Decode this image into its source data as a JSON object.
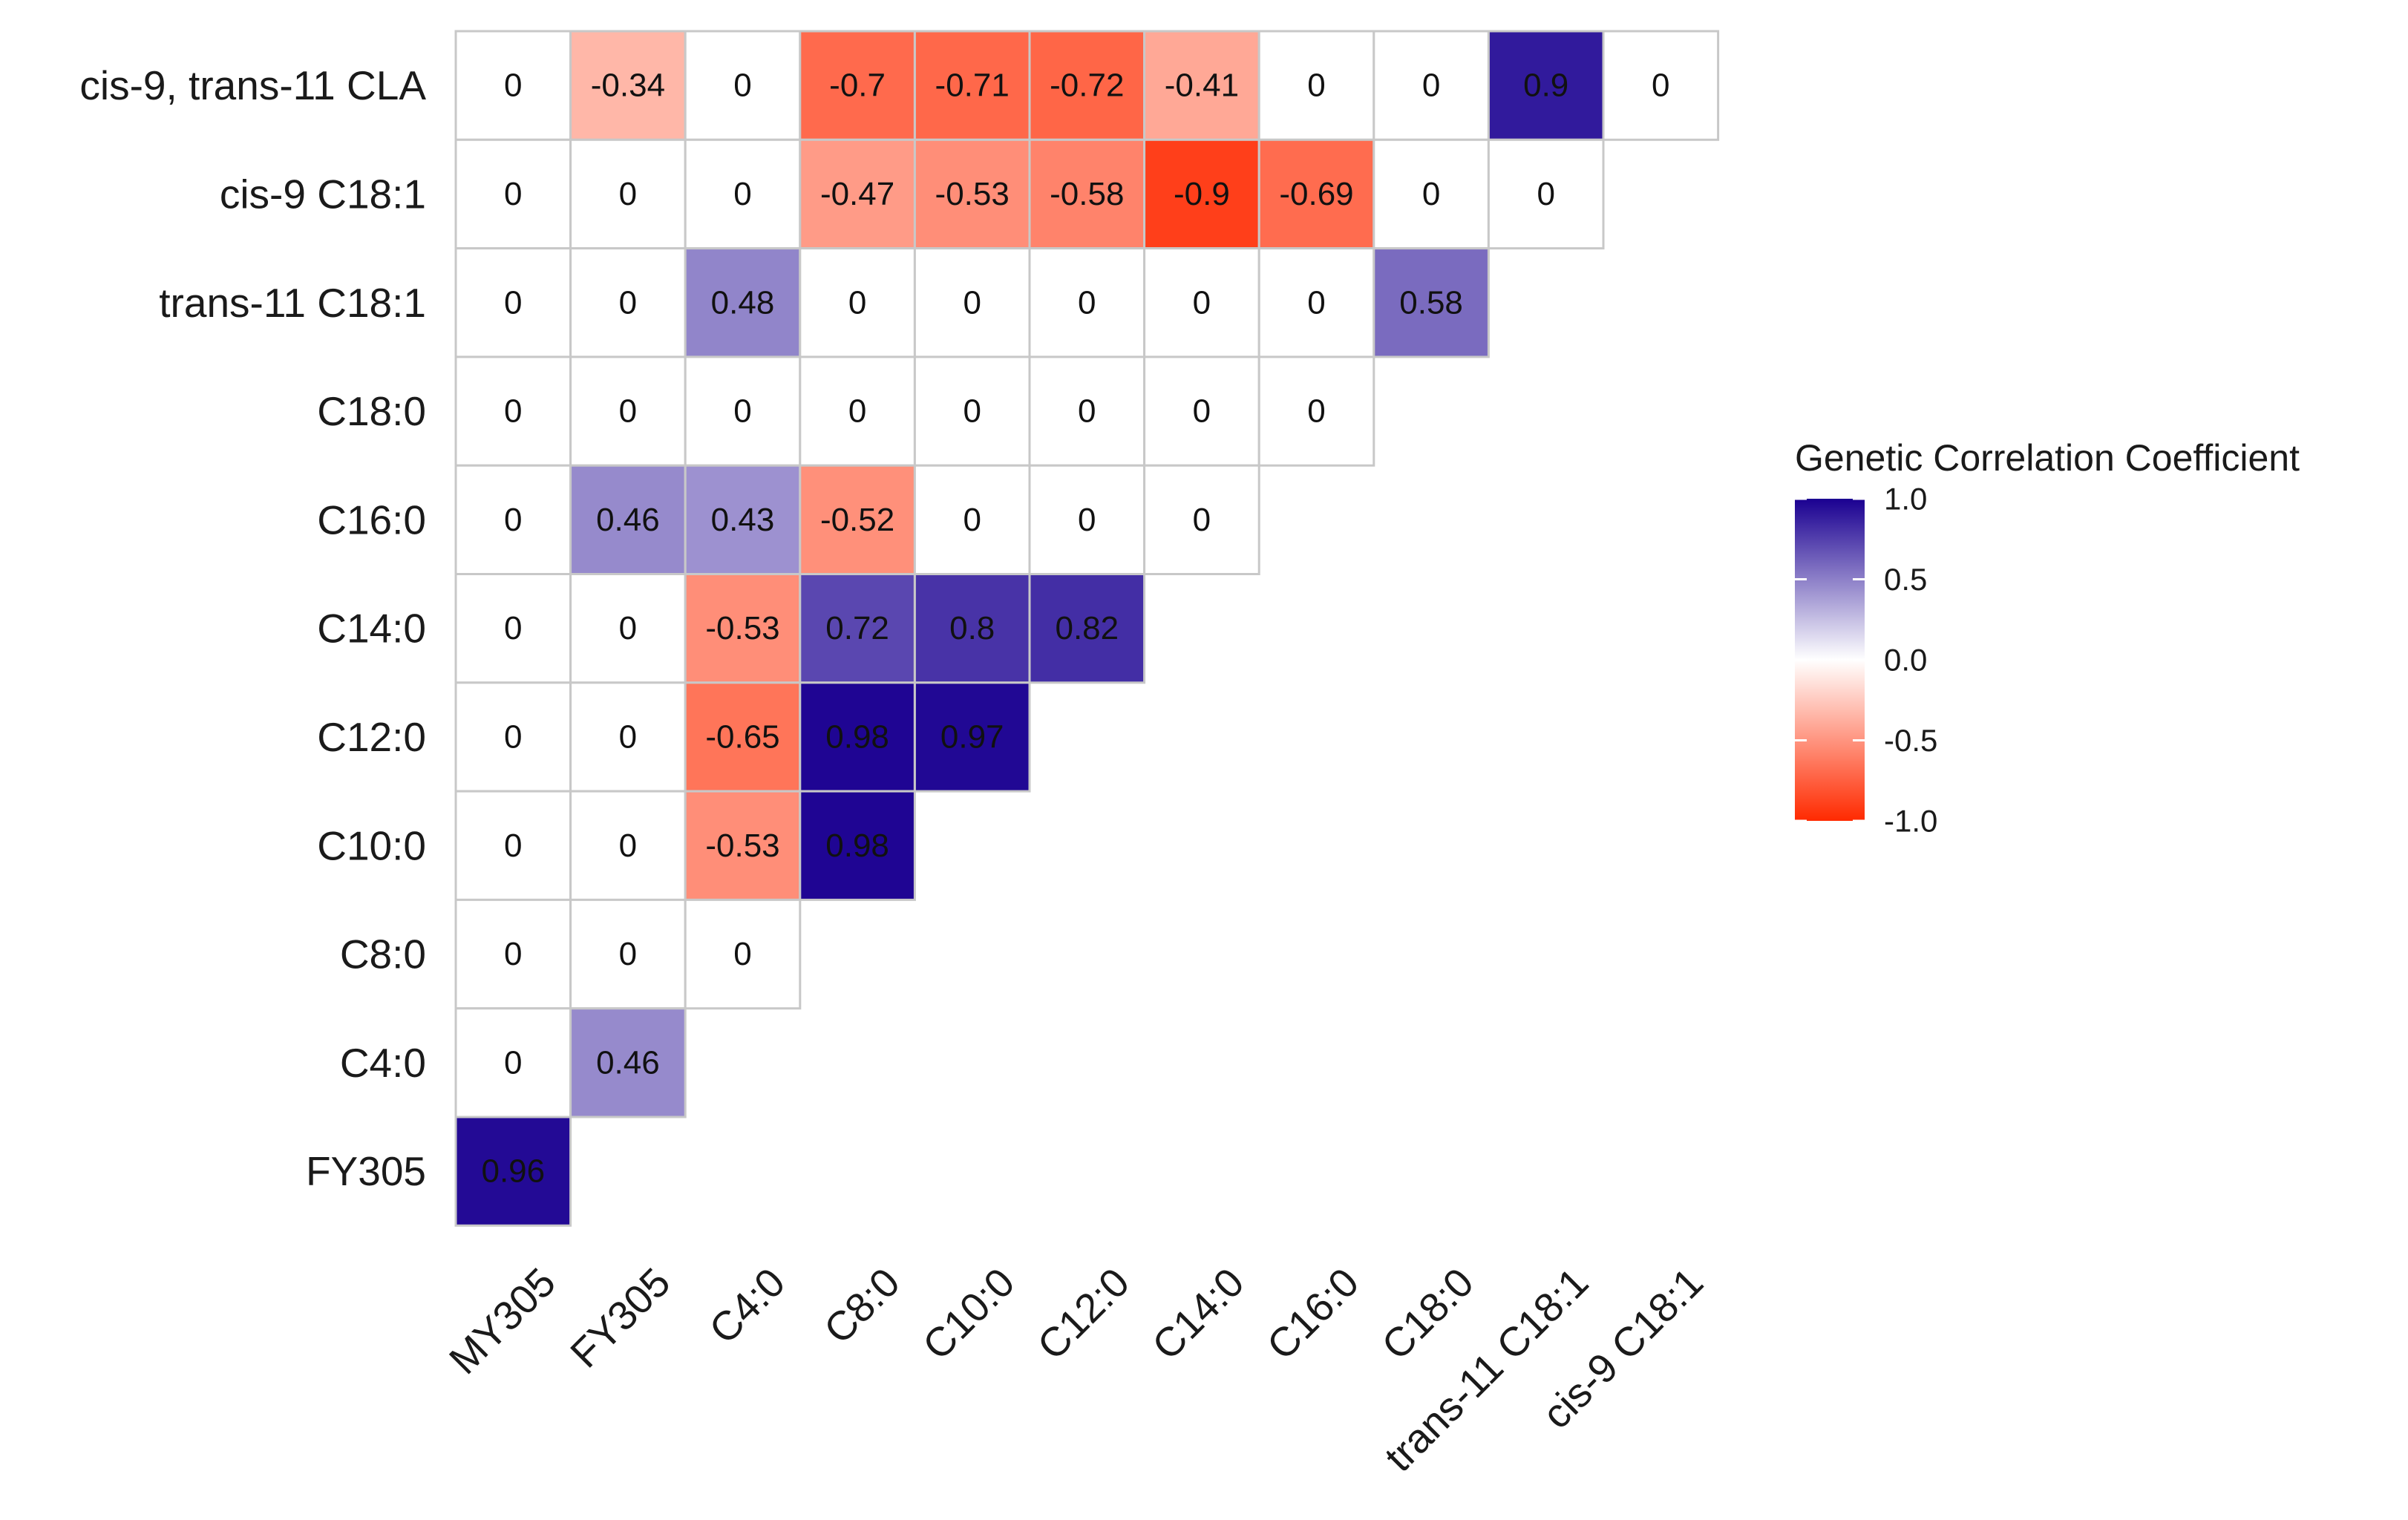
{
  "chart_data": {
    "type": "heatmap",
    "title": "",
    "xlabel": "",
    "ylabel": "",
    "x_categories": [
      "MY305",
      "FY305",
      "C4:0",
      "C8:0",
      "C10:0",
      "C12:0",
      "C14:0",
      "C16:0",
      "C18:0",
      "trans-11 C18:1",
      "cis-9 C18:1"
    ],
    "y_categories": [
      "cis-9, trans-11 CLA",
      "cis-9 C18:1",
      "trans-11 C18:1",
      "C18:0",
      "C16:0",
      "C14:0",
      "C12:0",
      "C10:0",
      "C8:0",
      "C4:0",
      "FY305"
    ],
    "rows": [
      {
        "label": "cis-9, trans-11 CLA",
        "cells": [
          {
            "v": 0,
            "t": "0"
          },
          {
            "v": -0.34,
            "t": "-0.34"
          },
          {
            "v": 0,
            "t": "0"
          },
          {
            "v": -0.7,
            "t": "-0.7"
          },
          {
            "v": -0.71,
            "t": "-0.71"
          },
          {
            "v": -0.72,
            "t": "-0.72"
          },
          {
            "v": -0.41,
            "t": "-0.41"
          },
          {
            "v": 0,
            "t": "0"
          },
          {
            "v": 0,
            "t": "0"
          },
          {
            "v": 0.9,
            "t": "0.9"
          },
          {
            "v": 0,
            "t": "0"
          }
        ]
      },
      {
        "label": "cis-9 C18:1",
        "cells": [
          {
            "v": 0,
            "t": "0"
          },
          {
            "v": 0,
            "t": "0"
          },
          {
            "v": 0,
            "t": "0"
          },
          {
            "v": -0.47,
            "t": "-0.47"
          },
          {
            "v": -0.53,
            "t": "-0.53"
          },
          {
            "v": -0.58,
            "t": "-0.58"
          },
          {
            "v": -0.9,
            "t": "-0.9"
          },
          {
            "v": -0.69,
            "t": "-0.69"
          },
          {
            "v": 0,
            "t": "0"
          },
          {
            "v": 0,
            "t": "0"
          }
        ]
      },
      {
        "label": "trans-11 C18:1",
        "cells": [
          {
            "v": 0,
            "t": "0"
          },
          {
            "v": 0,
            "t": "0"
          },
          {
            "v": 0.48,
            "t": "0.48"
          },
          {
            "v": 0,
            "t": "0"
          },
          {
            "v": 0,
            "t": "0"
          },
          {
            "v": 0,
            "t": "0"
          },
          {
            "v": 0,
            "t": "0"
          },
          {
            "v": 0,
            "t": "0"
          },
          {
            "v": 0.58,
            "t": "0.58"
          }
        ]
      },
      {
        "label": "C18:0",
        "cells": [
          {
            "v": 0,
            "t": "0"
          },
          {
            "v": 0,
            "t": "0"
          },
          {
            "v": 0,
            "t": "0"
          },
          {
            "v": 0,
            "t": "0"
          },
          {
            "v": 0,
            "t": "0"
          },
          {
            "v": 0,
            "t": "0"
          },
          {
            "v": 0,
            "t": "0"
          },
          {
            "v": 0,
            "t": "0"
          }
        ]
      },
      {
        "label": "C16:0",
        "cells": [
          {
            "v": 0,
            "t": "0"
          },
          {
            "v": 0.46,
            "t": "0.46"
          },
          {
            "v": 0.43,
            "t": "0.43"
          },
          {
            "v": -0.52,
            "t": "-0.52"
          },
          {
            "v": 0,
            "t": "0"
          },
          {
            "v": 0,
            "t": "0"
          },
          {
            "v": 0,
            "t": "0"
          }
        ]
      },
      {
        "label": "C14:0",
        "cells": [
          {
            "v": 0,
            "t": "0"
          },
          {
            "v": 0,
            "t": "0"
          },
          {
            "v": -0.53,
            "t": "-0.53"
          },
          {
            "v": 0.72,
            "t": "0.72"
          },
          {
            "v": 0.8,
            "t": "0.8"
          },
          {
            "v": 0.82,
            "t": "0.82"
          }
        ]
      },
      {
        "label": "C12:0",
        "cells": [
          {
            "v": 0,
            "t": "0"
          },
          {
            "v": 0,
            "t": "0"
          },
          {
            "v": -0.65,
            "t": "-0.65"
          },
          {
            "v": 0.98,
            "t": "0.98"
          },
          {
            "v": 0.97,
            "t": "0.97"
          }
        ]
      },
      {
        "label": "C10:0",
        "cells": [
          {
            "v": 0,
            "t": "0"
          },
          {
            "v": 0,
            "t": "0"
          },
          {
            "v": -0.53,
            "t": "-0.53"
          },
          {
            "v": 0.98,
            "t": "0.98"
          }
        ]
      },
      {
        "label": "C8:0",
        "cells": [
          {
            "v": 0,
            "t": "0"
          },
          {
            "v": 0,
            "t": "0"
          },
          {
            "v": 0,
            "t": "0"
          }
        ]
      },
      {
        "label": "C4:0",
        "cells": [
          {
            "v": 0,
            "t": "0"
          },
          {
            "v": 0.46,
            "t": "0.46"
          }
        ]
      },
      {
        "label": "FY305",
        "cells": [
          {
            "v": 0.96,
            "t": "0.96"
          }
        ]
      }
    ],
    "legend": {
      "title": "Genetic Correlation Coefficient",
      "placement": "right",
      "range": [
        -1,
        1
      ],
      "ticks": [
        {
          "v": 1,
          "t": "1.0"
        },
        {
          "v": 0.5,
          "t": "0.5"
        },
        {
          "v": 0,
          "t": "0.0"
        },
        {
          "v": -0.5,
          "t": "-0.5"
        },
        {
          "v": -1,
          "t": "-1.0"
        }
      ],
      "colors": {
        "low": "#FF2A00",
        "mid": "#FFFFFF",
        "high": "#1A0091",
        "grid": "#C8C8C8"
      }
    }
  }
}
